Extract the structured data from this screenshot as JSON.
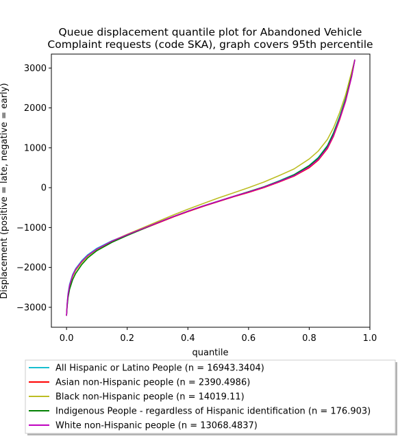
{
  "chart_data": {
    "type": "line",
    "title_lines": [
      "Queue displacement quantile plot for Abandoned Vehicle",
      "Complaint  requests (code SKA), graph covers 95th percentile"
    ],
    "xlabel": "quantile",
    "ylabel": "Displacement (positive = late, negative = early)",
    "xlim": [
      -0.05,
      1.0
    ],
    "ylim": [
      -3500,
      3350
    ],
    "xticks": [
      0.0,
      0.2,
      0.4,
      0.6,
      0.8,
      1.0
    ],
    "xtick_labels": [
      "0.0",
      "0.2",
      "0.4",
      "0.6",
      "0.8",
      "1.0"
    ],
    "yticks": [
      -3000,
      -2000,
      -1000,
      0,
      1000,
      2000,
      3000
    ],
    "ytick_labels": [
      "−3000",
      "−2000",
      "−1000",
      "0",
      "1000",
      "2000",
      "3000"
    ],
    "grid": false,
    "legend_position": "bottom, below chart",
    "series": [
      {
        "name": "All Hispanic or Latino People (n = 16943.3404)",
        "color": "#17becf",
        "x": [
          0.0,
          0.002,
          0.005,
          0.01,
          0.02,
          0.03,
          0.05,
          0.07,
          0.1,
          0.15,
          0.2,
          0.25,
          0.3,
          0.35,
          0.4,
          0.45,
          0.5,
          0.55,
          0.6,
          0.65,
          0.7,
          0.75,
          0.8,
          0.83,
          0.86,
          0.88,
          0.9,
          0.92,
          0.94,
          0.95
        ],
        "y": [
          -3200,
          -2900,
          -2650,
          -2420,
          -2180,
          -2030,
          -1830,
          -1680,
          -1520,
          -1330,
          -1180,
          -1030,
          -880,
          -730,
          -590,
          -460,
          -340,
          -220,
          -100,
          20,
          170,
          330,
          560,
          760,
          1060,
          1380,
          1780,
          2240,
          2830,
          3200
        ]
      },
      {
        "name": "Asian non-Hispanic people (n = 2390.4986)",
        "color": "#ff0000",
        "x": [
          0.0,
          0.002,
          0.005,
          0.01,
          0.02,
          0.03,
          0.05,
          0.07,
          0.1,
          0.15,
          0.2,
          0.25,
          0.3,
          0.35,
          0.4,
          0.45,
          0.5,
          0.55,
          0.6,
          0.65,
          0.7,
          0.75,
          0.8,
          0.83,
          0.86,
          0.88,
          0.9,
          0.92,
          0.94,
          0.95
        ],
        "y": [
          -3200,
          -2950,
          -2700,
          -2480,
          -2230,
          -2070,
          -1870,
          -1710,
          -1550,
          -1350,
          -1190,
          -1040,
          -890,
          -740,
          -600,
          -470,
          -350,
          -230,
          -120,
          0,
          140,
          290,
          500,
          690,
          980,
          1290,
          1700,
          2170,
          2790,
          3200
        ]
      },
      {
        "name": "Black non-Hispanic people (n = 14019.11)",
        "color": "#bcbd22",
        "x": [
          0.0,
          0.002,
          0.005,
          0.01,
          0.02,
          0.03,
          0.05,
          0.07,
          0.1,
          0.15,
          0.2,
          0.25,
          0.3,
          0.35,
          0.4,
          0.45,
          0.5,
          0.55,
          0.6,
          0.65,
          0.7,
          0.75,
          0.8,
          0.83,
          0.86,
          0.88,
          0.9,
          0.92,
          0.94,
          0.95
        ],
        "y": [
          -3200,
          -2950,
          -2700,
          -2480,
          -2230,
          -2080,
          -1880,
          -1720,
          -1550,
          -1340,
          -1170,
          -1010,
          -850,
          -690,
          -540,
          -400,
          -260,
          -130,
          0,
          140,
          300,
          470,
          720,
          920,
          1210,
          1500,
          1880,
          2330,
          2910,
          3200
        ]
      },
      {
        "name": "Indigenous People - regardless of Hispanic identification (n = 176.903)",
        "color": "#008000",
        "x": [
          0.0,
          0.002,
          0.005,
          0.01,
          0.02,
          0.03,
          0.05,
          0.07,
          0.1,
          0.15,
          0.2,
          0.25,
          0.3,
          0.35,
          0.4,
          0.45,
          0.5,
          0.55,
          0.6,
          0.65,
          0.7,
          0.75,
          0.8,
          0.83,
          0.86,
          0.88,
          0.9,
          0.92,
          0.94,
          0.95
        ],
        "y": [
          -3200,
          -2980,
          -2760,
          -2550,
          -2310,
          -2150,
          -1930,
          -1760,
          -1580,
          -1370,
          -1200,
          -1040,
          -880,
          -730,
          -590,
          -460,
          -340,
          -220,
          -100,
          20,
          160,
          320,
          550,
          740,
          1040,
          1360,
          1750,
          2220,
          2820,
          3200
        ]
      },
      {
        "name": "White non-Hispanic people (n = 13068.4837)",
        "color": "#bf00bf",
        "x": [
          0.0,
          0.002,
          0.005,
          0.01,
          0.02,
          0.03,
          0.05,
          0.07,
          0.1,
          0.15,
          0.2,
          0.25,
          0.3,
          0.35,
          0.4,
          0.45,
          0.5,
          0.55,
          0.6,
          0.65,
          0.7,
          0.75,
          0.8,
          0.83,
          0.86,
          0.88,
          0.9,
          0.92,
          0.94,
          0.95
        ],
        "y": [
          -3200,
          -2920,
          -2680,
          -2450,
          -2200,
          -2050,
          -1850,
          -1700,
          -1540,
          -1340,
          -1180,
          -1030,
          -880,
          -730,
          -590,
          -460,
          -340,
          -220,
          -110,
          10,
          150,
          300,
          520,
          710,
          1000,
          1310,
          1720,
          2180,
          2790,
          3200
        ]
      }
    ]
  }
}
